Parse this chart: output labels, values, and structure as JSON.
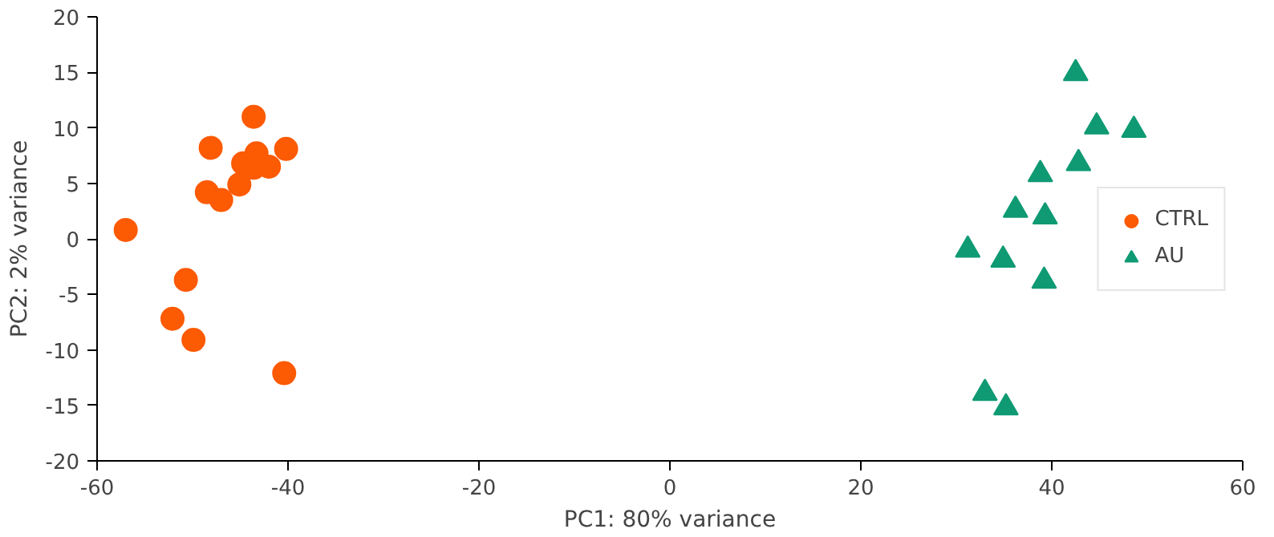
{
  "chart_data": {
    "type": "scatter",
    "xlabel": "PC1: 80% variance",
    "ylabel": "PC2: 2% variance",
    "xlim": [
      -60,
      60
    ],
    "xticks": [
      -60,
      -40,
      -20,
      0,
      20,
      40,
      60
    ],
    "ylim": [
      -20,
      20
    ],
    "yticks": [
      -20,
      -15,
      -10,
      -5,
      0,
      5,
      10,
      15,
      20
    ],
    "grid": false,
    "legend": "right",
    "series": [
      {
        "name": "CTRL",
        "color": "#fc5a03",
        "marker": "circle",
        "x": [
          -43.6,
          -48.1,
          -40.2,
          -43.3,
          -44.7,
          -43.6,
          -42.0,
          -45.1,
          -48.5,
          -47.0,
          -57.0,
          -50.7,
          -52.1,
          -49.9,
          -40.4
        ],
        "values": [
          11.0,
          8.2,
          8.1,
          7.7,
          6.8,
          6.4,
          6.5,
          4.9,
          4.2,
          3.5,
          0.8,
          -3.7,
          -7.2,
          -9.1,
          -12.1
        ]
      },
      {
        "name": "AU",
        "color": "#0f9a73",
        "marker": "triangle",
        "x": [
          42.5,
          44.7,
          48.6,
          42.8,
          38.8,
          36.2,
          39.3,
          31.2,
          34.9,
          39.2,
          33.0,
          35.2
        ],
        "values": [
          14.9,
          10.1,
          9.8,
          6.8,
          5.8,
          2.6,
          2.0,
          -1.0,
          -1.9,
          -3.8,
          -13.9,
          -15.2
        ]
      }
    ]
  }
}
